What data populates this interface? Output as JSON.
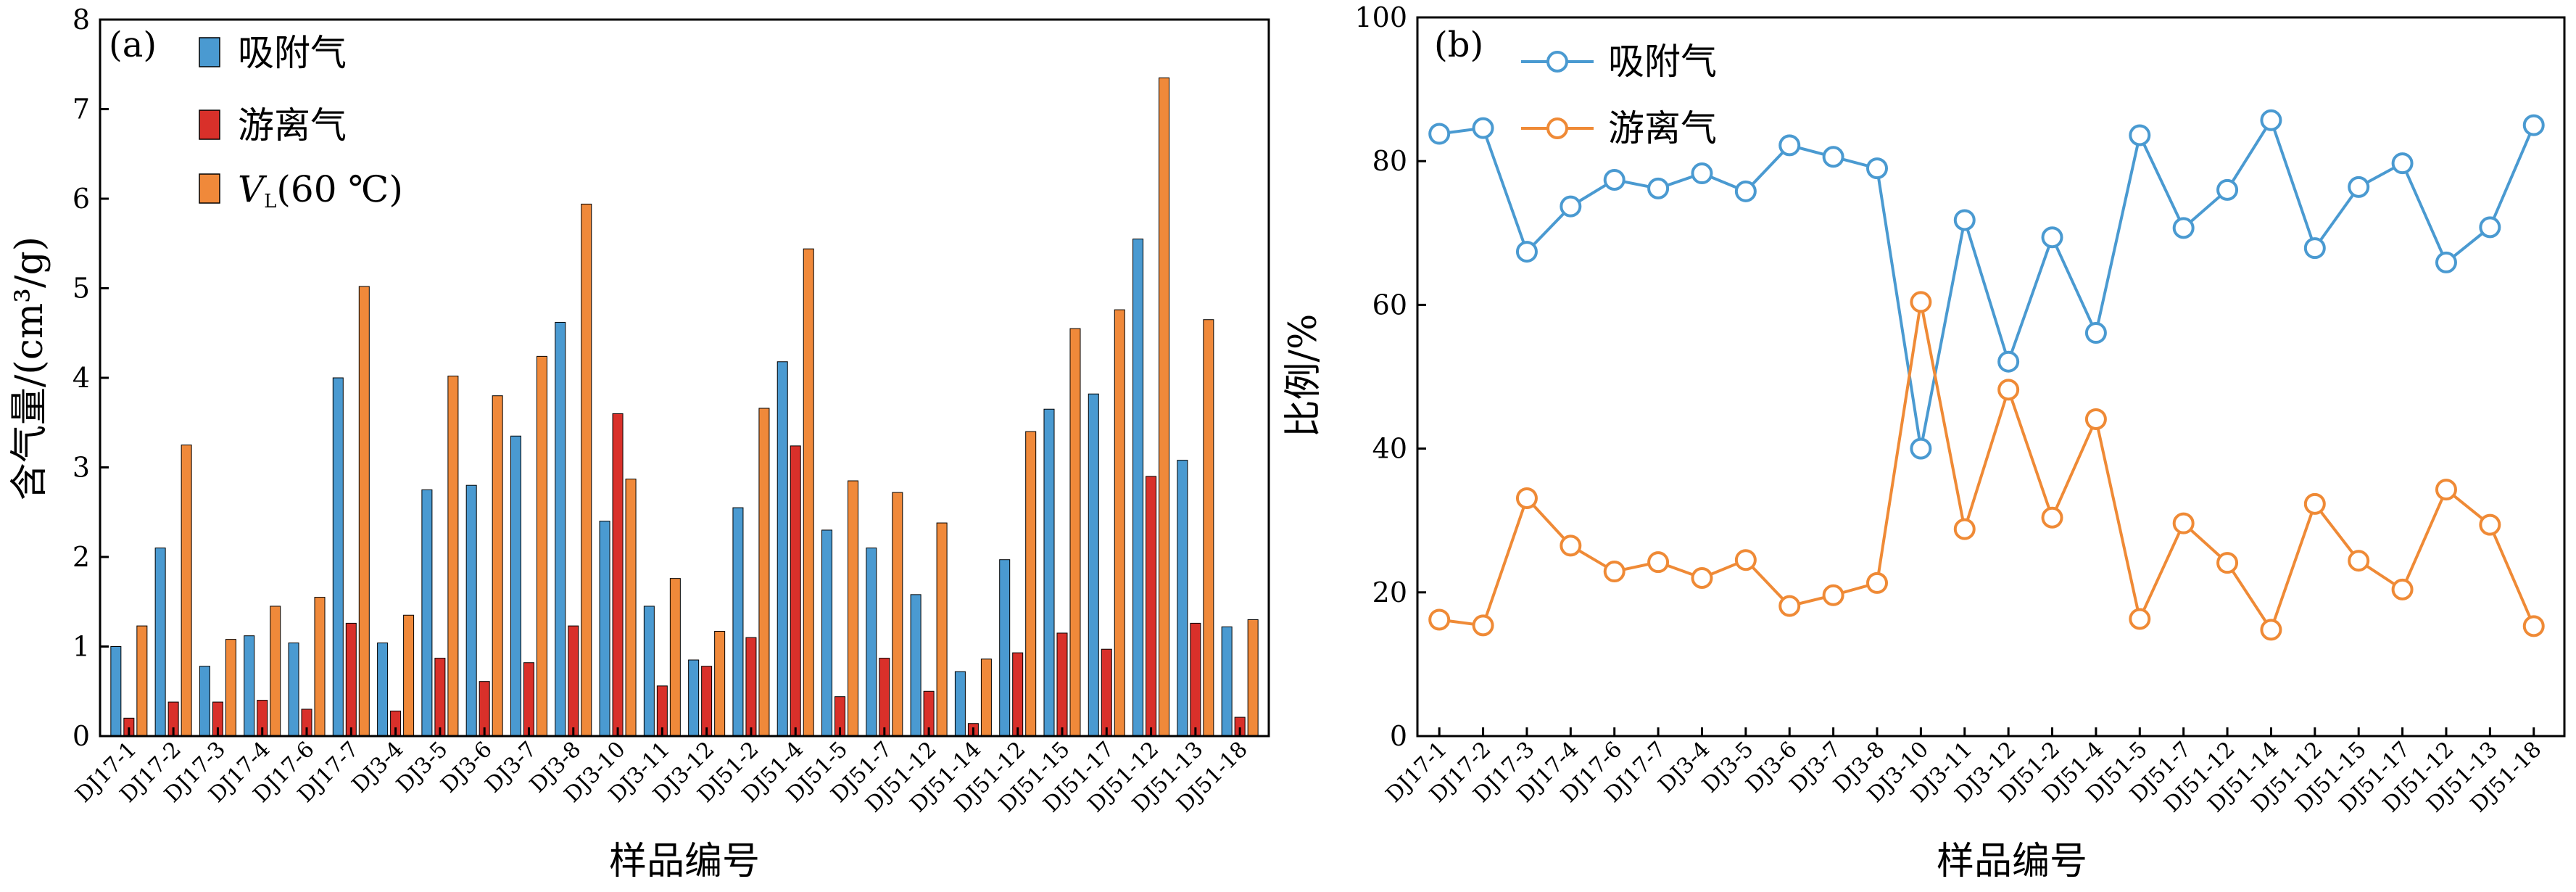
{
  "charts": {
    "a": {
      "chart_data": {
        "type": "bar",
        "panel_label": "(a)",
        "xlabel": "样品编号",
        "ylabel": "含气量/(cm³/g)",
        "ylim": [
          0,
          8
        ],
        "yticks": [
          0,
          1,
          2,
          3,
          4,
          5,
          6,
          7,
          8
        ],
        "categories": [
          "DJ17-1",
          "DJ17-2",
          "DJ17-3",
          "DJ17-4",
          "DJ17-6",
          "DJ17-7",
          "DJ3-4",
          "DJ3-5",
          "DJ3-6",
          "DJ3-7",
          "DJ3-8",
          "DJ3-10",
          "DJ3-11",
          "DJ3-12",
          "DJ51-2",
          "DJ51-4",
          "DJ51-5",
          "DJ51-7",
          "DJ51-12",
          "DJ51-14",
          "DJ51-12",
          "DJ51-15",
          "DJ51-17",
          "DJ51-12",
          "DJ51-13",
          "DJ51-18"
        ],
        "series": [
          {
            "name": "吸附气",
            "color": "#4a9ad1",
            "values": [
              1.0,
              2.1,
              0.78,
              1.12,
              1.04,
              4.0,
              1.04,
              2.75,
              2.8,
              3.35,
              4.62,
              2.4,
              1.45,
              0.85,
              2.55,
              4.18,
              2.3,
              2.1,
              1.58,
              0.72,
              1.97,
              3.65,
              3.82,
              5.55,
              3.08,
              1.22
            ]
          },
          {
            "name": "游离气",
            "color": "#d9302a",
            "values": [
              0.2,
              0.38,
              0.38,
              0.4,
              0.3,
              1.26,
              0.28,
              0.87,
              0.61,
              0.82,
              1.23,
              3.6,
              0.56,
              0.78,
              1.1,
              3.24,
              0.44,
              0.87,
              0.5,
              0.14,
              0.93,
              1.15,
              0.97,
              2.9,
              1.26,
              0.21
            ]
          },
          {
            "name": "VL(60 ℃)",
            "color": "#f0893a",
            "values": [
              1.23,
              3.25,
              1.08,
              1.45,
              1.55,
              5.02,
              1.35,
              4.02,
              3.8,
              4.24,
              5.94,
              2.87,
              1.76,
              1.17,
              3.66,
              5.44,
              2.85,
              2.72,
              2.38,
              0.86,
              3.4,
              4.55,
              4.76,
              7.35,
              4.65,
              1.3
            ]
          }
        ],
        "legend": {
          "position": "top-left",
          "items": [
            "吸附气",
            "游离气"
          ],
          "vl_main": "V",
          "vl_sub": "L",
          "vl_rest": "(60 ℃)"
        }
      }
    },
    "b": {
      "chart_data": {
        "type": "line",
        "panel_label": "(b)",
        "xlabel": "样品编号",
        "ylabel": "比例/%",
        "ylim": [
          0,
          100
        ],
        "yticks": [
          0,
          20,
          40,
          60,
          80,
          100
        ],
        "categories": [
          "DJ17-1",
          "DJ17-2",
          "DJ17-3",
          "DJ17-4",
          "DJ17-6",
          "DJ17-7",
          "DJ3-4",
          "DJ3-5",
          "DJ3-6",
          "DJ3-7",
          "DJ3-8",
          "DJ3-10",
          "DJ3-11",
          "DJ3-12",
          "DJ51-2",
          "DJ51-4",
          "DJ51-5",
          "DJ51-7",
          "DJ51-12",
          "DJ51-14",
          "DJ51-12",
          "DJ51-15",
          "DJ51-17",
          "DJ51-12",
          "DJ51-13",
          "DJ51-18"
        ],
        "series": [
          {
            "name": "吸附气",
            "color": "#4a9ad1",
            "values": [
              83.8,
              84.6,
              67.4,
              73.7,
              77.4,
              76.2,
              78.3,
              75.8,
              82.2,
              80.6,
              79.0,
              40.0,
              71.8,
              52.1,
              69.4,
              56.1,
              83.6,
              70.7,
              76.0,
              85.7,
              67.9,
              76.4,
              79.7,
              65.9,
              70.8,
              85.0
            ]
          },
          {
            "name": "游离气",
            "color": "#ef8a36",
            "values": [
              16.2,
              15.4,
              33.1,
              26.5,
              22.9,
              24.2,
              22.0,
              24.5,
              18.1,
              19.6,
              21.3,
              60.4,
              28.8,
              48.2,
              30.4,
              44.1,
              16.3,
              29.6,
              24.1,
              14.8,
              32.3,
              24.4,
              20.4,
              34.3,
              29.4,
              15.3
            ]
          }
        ],
        "legend": {
          "position": "top-left"
        }
      }
    }
  }
}
